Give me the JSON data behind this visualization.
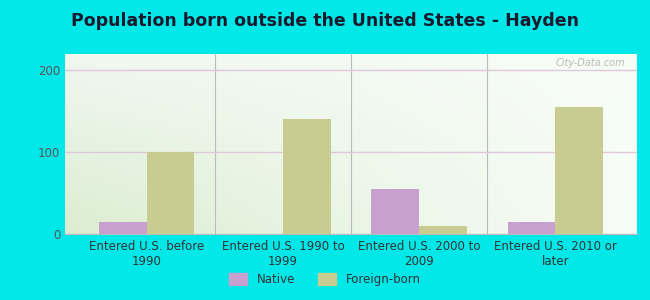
{
  "title": "Population born outside the United States - Hayden",
  "categories": [
    "Entered U.S. before\n1990",
    "Entered U.S. 1990 to\n1999",
    "Entered U.S. 2000 to\n2009",
    "Entered U.S. 2010 or\nlater"
  ],
  "native_values": [
    15,
    0,
    55,
    15
  ],
  "foreign_values": [
    100,
    140,
    10,
    155
  ],
  "native_color": "#c8a0d0",
  "foreign_color": "#c8cc90",
  "background_color": "#00e8e8",
  "ylim": [
    0,
    220
  ],
  "yticks": [
    0,
    100,
    200
  ],
  "bar_width": 0.35,
  "title_fontsize": 12.5,
  "tick_fontsize": 8.5,
  "legend_labels": [
    "Native",
    "Foreign-born"
  ],
  "watermark": "City-Data.com"
}
